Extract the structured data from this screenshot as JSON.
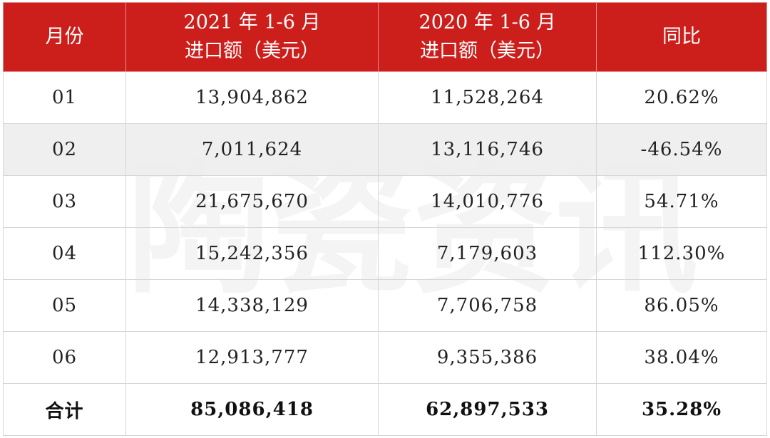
{
  "table": {
    "headers": [
      {
        "lines": [
          "月份"
        ]
      },
      {
        "lines": [
          "2021 年 1-6 月",
          "进口额（美元）"
        ]
      },
      {
        "lines": [
          "2020 年 1-6 月",
          "进口额（美元）"
        ]
      },
      {
        "lines": [
          "同比"
        ]
      }
    ],
    "rows": [
      [
        "01",
        "13,904,862",
        "11,528,264",
        "20.62%"
      ],
      [
        "02",
        "7,011,624",
        "13,116,746",
        "-46.54%"
      ],
      [
        "03",
        "21,675,670",
        "14,010,776",
        "54.71%"
      ],
      [
        "04",
        "15,242,356",
        "7,179,603",
        "112.30%"
      ],
      [
        "05",
        "14,338,129",
        "7,706,758",
        "86.05%"
      ],
      [
        "06",
        "12,913,777",
        "9,355,386",
        "38.04%"
      ]
    ],
    "total": [
      "合计",
      "85,086,418",
      "62,897,533",
      "35.28%"
    ]
  },
  "watermark": [
    "陶",
    "瓷",
    "资",
    "讯"
  ],
  "colors": {
    "header_bg": "#cc1f1c",
    "header_text": "#ffffff",
    "shaded_row": "#ececec"
  }
}
